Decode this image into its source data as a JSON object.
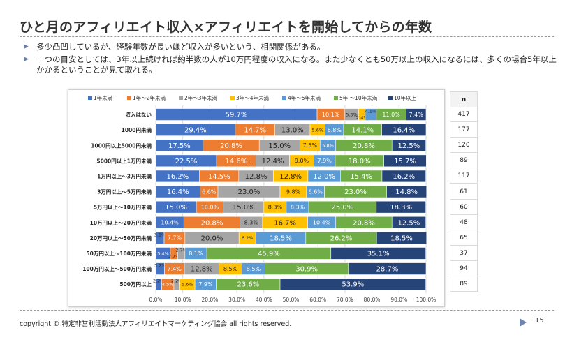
{
  "slide": {
    "title": "ひと月のアフィリエイト収入×アフィリエイトを開始してからの年数",
    "bullets": [
      "多少凸凹しているが、経験年数が長いほど収入が多いという、相関関係がある。",
      "一つの目安としては、3年以上続ければ約半数の人が10万円程度の収入になる。また少なくとも50万以上の収入になるには、多くの場合5年以上かかるということが見て取れる。"
    ],
    "footer": "copyright © 特定非営利活動法人アフィリエイトマーケティング協会 all rights reserved.",
    "page_number": "15",
    "n_header": "n",
    "n_values": [
      "417",
      "177",
      "120",
      "89",
      "117",
      "61",
      "60",
      "48",
      "65",
      "37",
      "94",
      "89"
    ]
  },
  "chart_data": {
    "type": "bar",
    "orientation": "horizontal",
    "stacked": true,
    "percent": true,
    "categories": [
      "収入はない",
      "1000円未満",
      "1000円以上5000円未満",
      "5000円以上1万円未満",
      "1万円以上～3万円未満",
      "3万円以上～5万円未満",
      "5万円以上～10万円未満",
      "10万円以上～20万円未満",
      "20万円以上～50万円未満",
      "50万円以上～100万円未満",
      "100万円以上～500万円未満",
      "500万円以上"
    ],
    "series": [
      {
        "name": "1年未満",
        "color": "#4472c4",
        "values": [
          59.7,
          29.4,
          17.5,
          22.5,
          16.2,
          16.4,
          15.0,
          10.4,
          3.1,
          5.4,
          3.2,
          2.2
        ]
      },
      {
        "name": "1年～2年未満",
        "color": "#ed7d31",
        "values": [
          10.1,
          14.7,
          20.8,
          14.6,
          14.5,
          6.6,
          10.0,
          20.8,
          7.7,
          2.7,
          7.4,
          4.5
        ]
      },
      {
        "name": "2年～3年未満",
        "color": "#a5a5a5",
        "values": [
          5.3,
          13.0,
          15.0,
          12.4,
          12.8,
          23.0,
          15.0,
          8.3,
          20.0,
          2.7,
          12.8,
          2.2
        ]
      },
      {
        "name": "3年～4年未満",
        "color": "#ffc000",
        "values": [
          2.4,
          5.6,
          7.5,
          9.0,
          12.8,
          9.8,
          8.3,
          16.7,
          6.2,
          0.0,
          8.5,
          5.6
        ]
      },
      {
        "name": "4年～5年未満",
        "color": "#5b9bd5",
        "values": [
          4.1,
          6.8,
          5.8,
          7.9,
          12.0,
          6.6,
          8.3,
          10.4,
          18.5,
          8.1,
          8.5,
          7.9
        ]
      },
      {
        "name": "5年 ～10年未満",
        "color": "#70ad47",
        "values": [
          11.0,
          14.1,
          20.8,
          18.0,
          15.4,
          23.0,
          25.0,
          20.8,
          26.2,
          45.9,
          30.9,
          23.6
        ]
      },
      {
        "name": "10年以上",
        "color": "#264478",
        "values": [
          7.4,
          16.4,
          12.5,
          15.7,
          16.2,
          14.8,
          18.3,
          12.5,
          18.5,
          35.1,
          28.7,
          53.9
        ]
      }
    ],
    "value_labels": [
      [
        "59.7%",
        "10.1%",
        "5.3%",
        "2.4%",
        "4.1%",
        "11.0%",
        "7.4%"
      ],
      [
        "29.4%",
        "14.7%",
        "13.0%",
        "5.6%",
        "6.8%",
        "14.1%",
        "16.4%"
      ],
      [
        "17.5%",
        "20.8%",
        "15.0%",
        "7.5%",
        "5.8%",
        "20.8%",
        "12.5%"
      ],
      [
        "22.5%",
        "14.6%",
        "12.4%",
        "9.0%",
        "7.9%",
        "18.0%",
        "15.7%"
      ],
      [
        "16.2%",
        "14.5%",
        "12.8%",
        "12.8%",
        "12.0%",
        "15.4%",
        "16.2%"
      ],
      [
        "16.4%",
        "6.6%",
        "23.0%",
        "9.8%",
        "6.6%",
        "23.0%",
        "14.8%"
      ],
      [
        "15.0%",
        "10.0%",
        "15.0%",
        "8.3%",
        "8.3%",
        "25.0%",
        "18.3%"
      ],
      [
        "10.4%",
        "20.8%",
        "8.3%",
        "16.7%",
        "10.4%",
        "20.8%",
        "12.5%"
      ],
      [
        "3.1%",
        "7.7%",
        "20.0%",
        "6.2%",
        "18.5%",
        "26.2%",
        "18.5%"
      ],
      [
        "5.4%",
        "2.7%",
        "2.7%",
        "",
        "8.1%",
        "45.9%",
        "35.1%"
      ],
      [
        "3.2%",
        "7.4%",
        "12.8%",
        "8.5%",
        "8.5%",
        "30.9%",
        "28.7%"
      ],
      [
        "2.2%",
        "4.5%",
        "2.2%",
        "5.6%",
        "7.9%",
        "23.6%",
        "53.9%"
      ]
    ],
    "x_ticks": [
      "0.0%",
      "10.0%",
      "20.0%",
      "30.0%",
      "40.0%",
      "50.0%",
      "60.0%",
      "70.0%",
      "80.0%",
      "90.0%",
      "100.0%"
    ],
    "xlim": [
      0,
      100
    ],
    "legend_position": "top",
    "grid": true
  }
}
